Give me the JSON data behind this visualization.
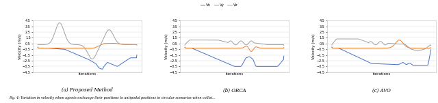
{
  "subplot_titles": [
    "(a) Proposed Method",
    "(b) ORCA",
    "(c) AVO"
  ],
  "caption": "Fig. 4: Variation in velocity when agents exchange their positions to antipodal positions in circular scenarios when collisi...",
  "legend_labels": [
    "Vx",
    "Vy",
    "Vz"
  ],
  "legend_colors": [
    "#4472c4",
    "#ed7d31",
    "#a0a0a0"
  ],
  "ylabel": "Velocity (m/s)",
  "xlabel": "Iterations",
  "ylim": [
    -4.5,
    4.5
  ],
  "yticks": [
    -4.5,
    -3.5,
    -2.5,
    -1.5,
    -0.5,
    0.5,
    1.5,
    2.5,
    3.5,
    4.5
  ],
  "background_color": "#ffffff",
  "grid_color": "#d8d8d8"
}
